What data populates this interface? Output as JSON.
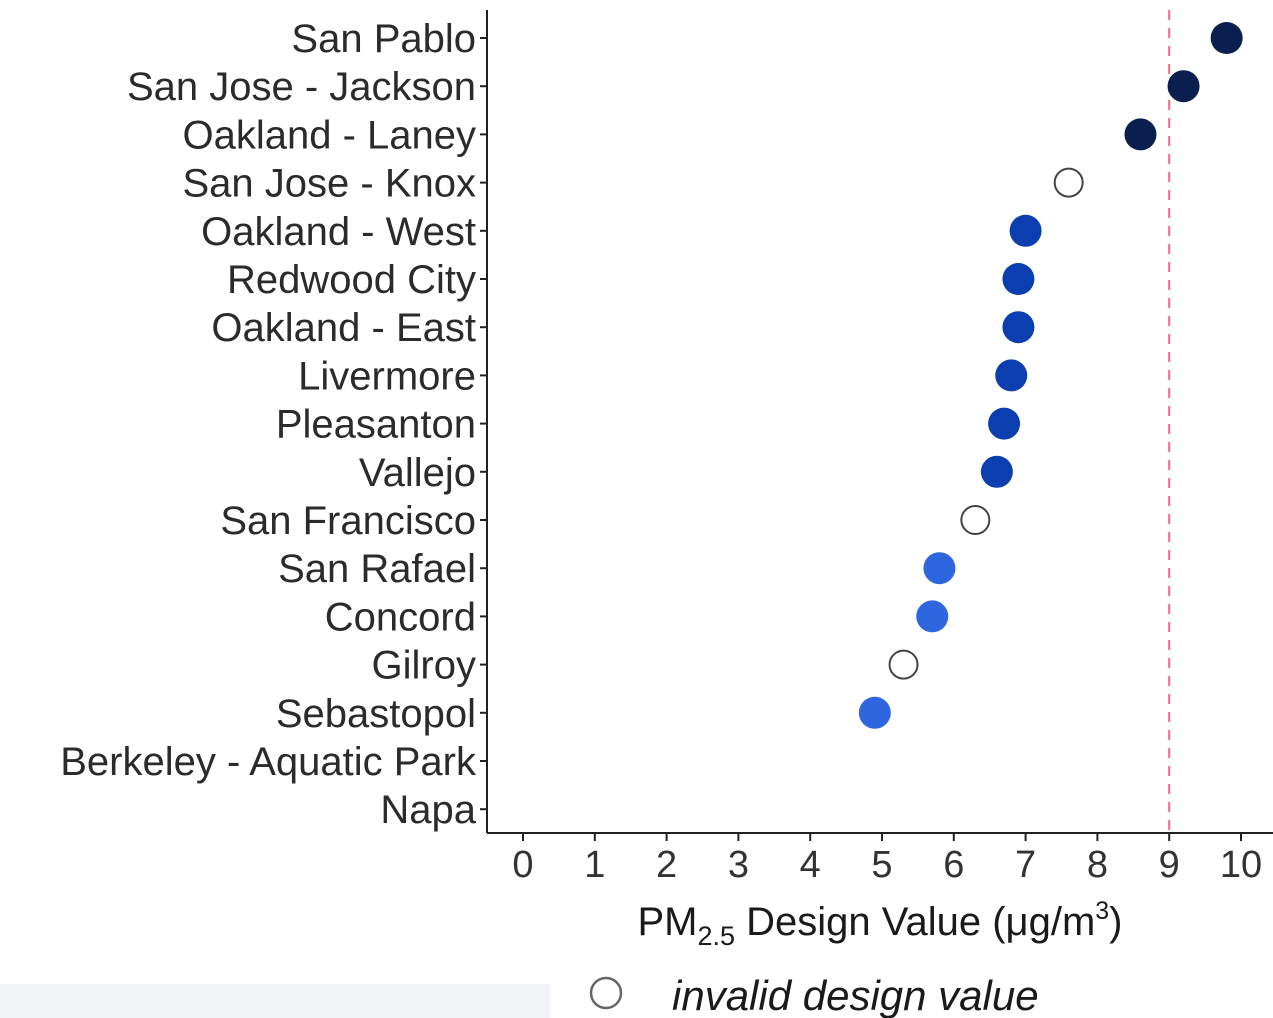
{
  "chart_data": {
    "type": "scatter",
    "categories": [
      "San Pablo",
      "San Jose - Jackson",
      "Oakland - Laney",
      "San Jose - Knox",
      "Oakland - West",
      "Redwood City",
      "Oakland - East",
      "Livermore",
      "Pleasanton",
      "Vallejo",
      "San Francisco",
      "San Rafael",
      "Concord",
      "Gilroy",
      "Sebastopol",
      "Berkeley - Aquatic Park",
      "Napa"
    ],
    "values": [
      9.8,
      9.2,
      8.6,
      7.6,
      7.0,
      6.9,
      6.9,
      6.8,
      6.7,
      6.6,
      6.3,
      5.8,
      5.7,
      5.3,
      4.9,
      null,
      null
    ],
    "valid": [
      true,
      true,
      true,
      false,
      true,
      true,
      true,
      true,
      true,
      true,
      false,
      true,
      true,
      false,
      true,
      null,
      null
    ],
    "xlabel_main": "PM",
    "xlabel_sub": "2.5",
    "xlabel_rest": " Design Value (μg/m",
    "xlabel_sup": "3",
    "xlabel_end": ")",
    "xlim": [
      -0.5,
      10.3
    ],
    "xticks": [
      "0",
      "1",
      "2",
      "3",
      "4",
      "5",
      "6",
      "7",
      "8",
      "9",
      "10"
    ],
    "reference_line": {
      "x": 9,
      "color": "#f06b80",
      "style": "dashed"
    },
    "colors": {
      "high": "#0a1f4f",
      "mid": "#0b3fb0",
      "low": "#2e66e0",
      "invalid_fill": "#ffffff",
      "invalid_stroke": "#444444"
    },
    "legend": {
      "marker": "open-circle",
      "label": "invalid design value"
    }
  }
}
